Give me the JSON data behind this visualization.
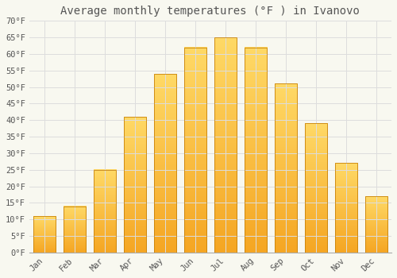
{
  "title": "Average monthly temperatures (°F ) in Ivanovo",
  "months": [
    "Jan",
    "Feb",
    "Mar",
    "Apr",
    "May",
    "Jun",
    "Jul",
    "Aug",
    "Sep",
    "Oct",
    "Nov",
    "Dec"
  ],
  "values": [
    11,
    14,
    25,
    41,
    54,
    62,
    65,
    62,
    51,
    39,
    27,
    17
  ],
  "bar_color_bottom": "#F5A623",
  "bar_color_top": "#FFD966",
  "bar_edge_color": "#C8820A",
  "background_color": "#F8F8F0",
  "plot_bg_color": "#F8F8F0",
  "grid_color": "#DDDDDD",
  "text_color": "#555555",
  "ylim": [
    0,
    70
  ],
  "yticks": [
    0,
    5,
    10,
    15,
    20,
    25,
    30,
    35,
    40,
    45,
    50,
    55,
    60,
    65,
    70
  ],
  "title_fontsize": 10,
  "tick_fontsize": 7.5,
  "bar_width": 0.75
}
